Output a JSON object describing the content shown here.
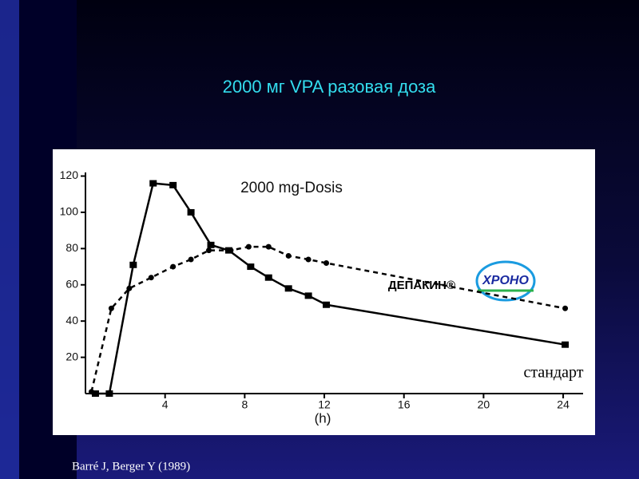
{
  "title": "2000 мг VPA разовая доза",
  "citation": "Barré J, Berger Y (1989)",
  "chart_data": {
    "type": "line",
    "title": "2000 mg-Dosis",
    "x_label": "(h)",
    "xlim": [
      0,
      25
    ],
    "xticks": [
      4,
      8,
      12,
      16,
      20,
      24
    ],
    "ylim": [
      0,
      122
    ],
    "yticks": [
      20,
      40,
      60,
      80,
      100,
      120
    ],
    "series": [
      {
        "name": "стандарт",
        "color": "#000000",
        "marker": "square",
        "dash": false,
        "x": [
          0.5,
          1.2,
          2.4,
          3.4,
          4.4,
          5.3,
          6.3,
          7.2,
          8.3,
          9.2,
          10.2,
          11.2,
          12.1,
          24.1
        ],
        "values": [
          0,
          0,
          71,
          116,
          115,
          100,
          82,
          79,
          70,
          64,
          58,
          54,
          49,
          27
        ]
      },
      {
        "name": "ДЕПАКИН®",
        "color": "#000000",
        "marker": "circle",
        "dash": true,
        "x": [
          0.3,
          1.3,
          2.2,
          3.3,
          4.4,
          5.3,
          6.2,
          7.3,
          8.2,
          9.2,
          10.2,
          11.2,
          12.1,
          24.1
        ],
        "values": [
          1,
          47,
          58,
          64,
          70,
          74,
          79,
          79,
          81,
          81,
          76,
          74,
          72,
          47
        ]
      }
    ],
    "annotations": [
      "ХРОНО"
    ]
  }
}
